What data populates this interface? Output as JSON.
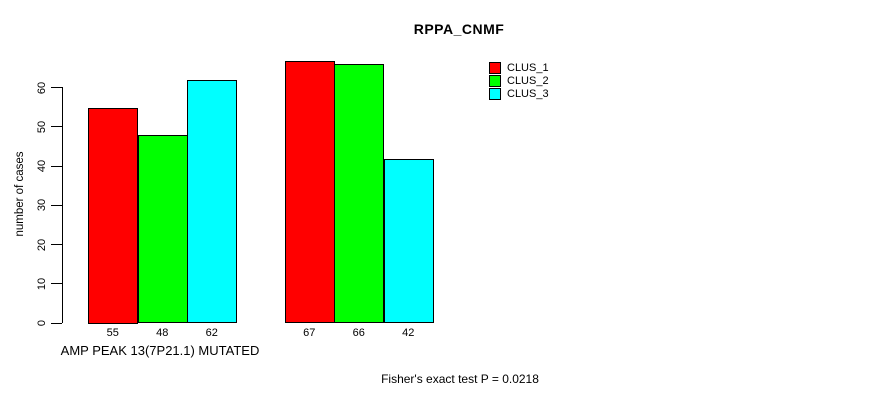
{
  "title": "RPPA_CNMF",
  "annotation": "Fisher's exact test P = 0.0218",
  "chart_data": {
    "type": "bar",
    "title": "RPPA_CNMF",
    "ylabel": "number of cases",
    "xlabel": "",
    "ylim": [
      0,
      60
    ],
    "yticks": [
      0,
      10,
      20,
      30,
      40,
      50,
      60
    ],
    "categories": [
      "AMP PEAK 13(7P21.1) MUTATED",
      ""
    ],
    "series": [
      {
        "name": "CLUS_1",
        "color": "#ff0000",
        "values": [
          55,
          67
        ]
      },
      {
        "name": "CLUS_2",
        "color": "#00ff00",
        "values": [
          48,
          66
        ]
      },
      {
        "name": "CLUS_3",
        "color": "#00ffff",
        "values": [
          62,
          42
        ]
      }
    ],
    "bar_value_labels": [
      [
        "55",
        "48",
        "62"
      ],
      [
        "67",
        "66",
        "42"
      ]
    ],
    "legend_position": "top-right",
    "grid": false,
    "axis_color": "#000000",
    "background_color": "#ffffff"
  }
}
